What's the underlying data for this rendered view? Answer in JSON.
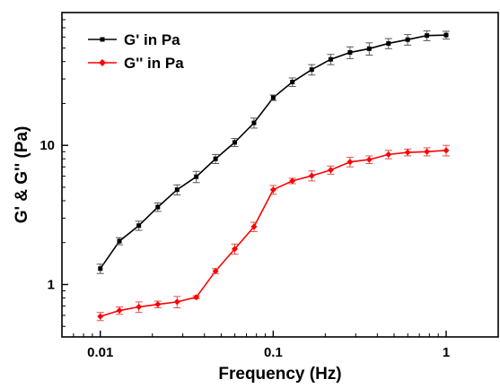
{
  "chart_data": {
    "type": "line",
    "xlabel": "Frequency (Hz)",
    "ylabel": "G' & G'' (Pa)",
    "x_scale": "log",
    "y_scale": "log",
    "xlim": [
      0.006,
      2.0
    ],
    "ylim": [
      0.42,
      90
    ],
    "x_ticks": [
      {
        "value": 0.01,
        "label": "0.01"
      },
      {
        "value": 0.1,
        "label": "0.1"
      },
      {
        "value": 1,
        "label": "1"
      }
    ],
    "y_ticks": [
      {
        "value": 1,
        "label": "1"
      },
      {
        "value": 10,
        "label": "10"
      }
    ],
    "grid": false,
    "legend_position": "top-left",
    "series": [
      {
        "name": "G' in Pa",
        "color": "#000000",
        "marker": "square",
        "x": [
          0.01,
          0.0129,
          0.0167,
          0.0215,
          0.0278,
          0.0359,
          0.0464,
          0.0599,
          0.0774,
          0.1,
          0.129,
          0.167,
          0.215,
          0.278,
          0.359,
          0.464,
          0.599,
          0.774,
          1.0
        ],
        "y": [
          1.3,
          2.05,
          2.65,
          3.6,
          4.8,
          5.95,
          8.0,
          10.5,
          14.5,
          22.0,
          28.5,
          35.0,
          41.5,
          46.5,
          49.5,
          54.0,
          57.5,
          61.5,
          62.0
        ],
        "error": [
          0.1,
          0.12,
          0.2,
          0.25,
          0.4,
          0.55,
          0.6,
          0.7,
          1.2,
          1.0,
          2.0,
          3.0,
          3.5,
          4.5,
          5.0,
          4.5,
          5.0,
          5.0,
          4.0
        ]
      },
      {
        "name": "G'' in Pa",
        "color": "#ff0000",
        "marker": "diamond",
        "x": [
          0.01,
          0.0129,
          0.0167,
          0.0215,
          0.0278,
          0.0359,
          0.0464,
          0.0599,
          0.0774,
          0.1,
          0.129,
          0.167,
          0.215,
          0.278,
          0.359,
          0.464,
          0.599,
          0.774,
          1.0
        ],
        "y": [
          0.59,
          0.65,
          0.69,
          0.72,
          0.75,
          0.81,
          1.25,
          1.8,
          2.6,
          4.8,
          5.55,
          6.05,
          6.65,
          7.6,
          7.9,
          8.6,
          8.9,
          9.0,
          9.2
        ],
        "error": [
          0.04,
          0.04,
          0.06,
          0.04,
          0.07,
          0.02,
          0.05,
          0.15,
          0.2,
          0.35,
          0.25,
          0.5,
          0.45,
          0.6,
          0.5,
          0.6,
          0.5,
          0.6,
          0.8
        ]
      }
    ]
  }
}
